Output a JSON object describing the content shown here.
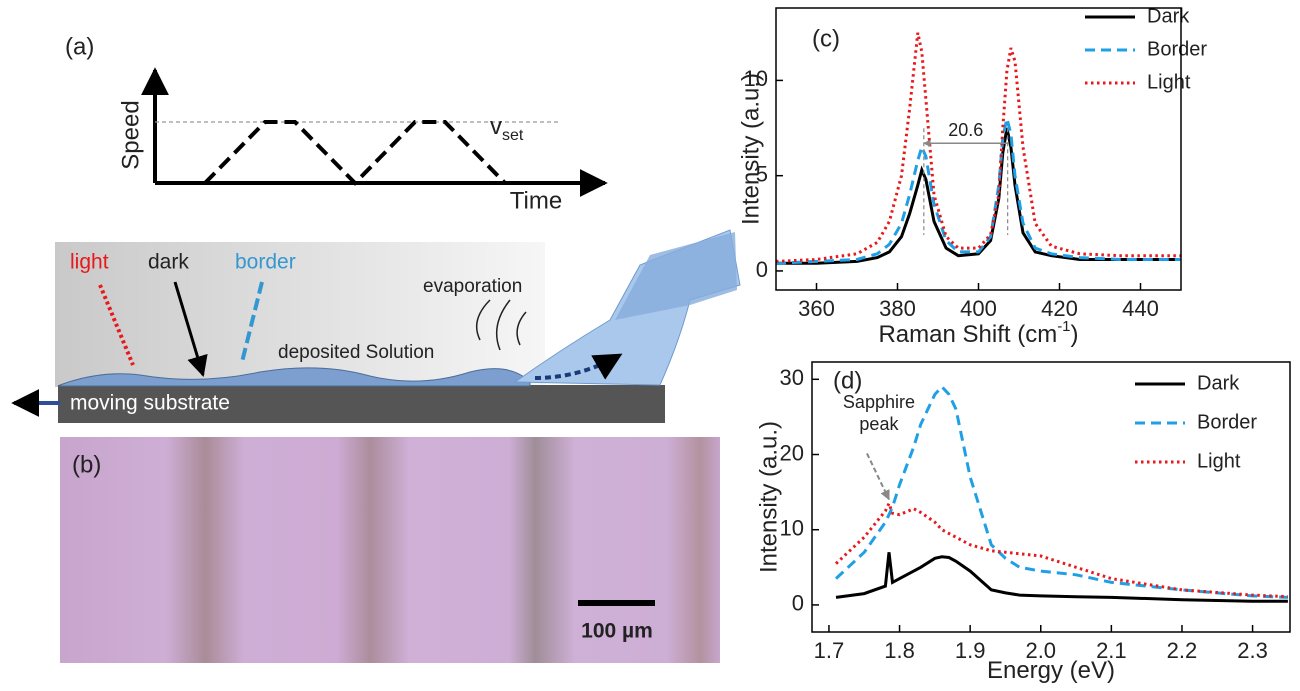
{
  "panel_a": {
    "label": "(a)",
    "y_label": "Speed",
    "x_label": "Time",
    "v": "v",
    "v_sub": "set"
  },
  "schematic": {
    "light": "light",
    "dark": "dark",
    "border": "border",
    "evaporation": "evaporation",
    "deposited": "deposited Solution",
    "substrate": "moving substrate"
  },
  "panel_b": {
    "label": "(b)",
    "scale_bar": "100 µm"
  },
  "chart_data": [
    {
      "type": "line",
      "panel_label": "(c)",
      "x_label": "Raman Shift (cm",
      "x_label_sup": "-1",
      "x_label_end": ")",
      "y_label": "Intensity (a.u.)",
      "x": [
        350,
        360,
        370,
        375,
        378,
        381,
        383,
        385,
        386,
        387,
        389,
        392,
        395,
        400,
        403,
        405,
        406,
        407,
        408,
        409,
        411,
        414,
        418,
        425,
        435,
        450
      ],
      "series": [
        {
          "name": "Dark",
          "color": "#000000",
          "style": "solid",
          "values": [
            0.4,
            0.4,
            0.5,
            0.7,
            1.0,
            1.8,
            3.0,
            4.5,
            5.3,
            4.8,
            2.6,
            1.2,
            0.8,
            0.9,
            1.6,
            3.8,
            6.2,
            7.5,
            6.5,
            4.5,
            2.0,
            1.0,
            0.8,
            0.6,
            0.6,
            0.6
          ]
        },
        {
          "name": "Border",
          "color": "#1fa0e6",
          "style": "dashed",
          "values": [
            0.4,
            0.5,
            0.6,
            0.9,
            1.4,
            2.5,
            4.0,
            5.8,
            6.5,
            6.0,
            3.5,
            1.6,
            1.0,
            1.0,
            1.8,
            4.5,
            7.0,
            8.0,
            7.2,
            5.0,
            2.5,
            1.2,
            0.9,
            0.7,
            0.6,
            0.6
          ]
        },
        {
          "name": "Light",
          "color": "#e8191c",
          "style": "dotted",
          "values": [
            0.5,
            0.6,
            0.9,
            1.5,
            2.6,
            5.0,
            8.5,
            12.5,
            11.5,
            9.0,
            4.0,
            1.8,
            1.2,
            1.2,
            1.9,
            4.0,
            7.5,
            10.5,
            11.7,
            11.0,
            6.5,
            2.5,
            1.3,
            0.9,
            0.8,
            0.8
          ]
        }
      ],
      "xlim": [
        350,
        450
      ],
      "xticks": [
        360,
        380,
        400,
        420,
        440
      ],
      "ylim": [
        -1,
        13.8
      ],
      "yticks": [
        0,
        5,
        10
      ],
      "legend": "upper right",
      "annotation": {
        "text": "20.6",
        "x_from": 386.5,
        "x_to": 407.2,
        "y": 6.7
      }
    },
    {
      "type": "line",
      "panel_label": "(d)",
      "x_label": "Energy (eV)",
      "y_label": "Intensity (a.u.)",
      "x": [
        1.71,
        1.75,
        1.78,
        1.785,
        1.79,
        1.8,
        1.82,
        1.83,
        1.85,
        1.86,
        1.87,
        1.88,
        1.9,
        1.93,
        1.95,
        1.97,
        2.0,
        2.05,
        2.1,
        2.2,
        2.3,
        2.35
      ],
      "series": [
        {
          "name": "Dark",
          "color": "#000000",
          "style": "solid",
          "values": [
            1.0,
            1.5,
            2.5,
            7.0,
            3.0,
            3.5,
            4.5,
            5.0,
            6.2,
            6.4,
            6.3,
            5.8,
            4.5,
            2.0,
            1.6,
            1.3,
            1.2,
            1.1,
            1.0,
            0.7,
            0.5,
            0.5
          ]
        },
        {
          "name": "Border",
          "color": "#1fa0e6",
          "style": "dashed",
          "values": [
            3.5,
            7.0,
            11.0,
            12.0,
            13.0,
            16.0,
            21.0,
            24.0,
            28.0,
            29.0,
            28.0,
            26.0,
            17.0,
            8.0,
            6.2,
            5.0,
            4.5,
            4.0,
            3.0,
            2.0,
            1.2,
            1.0
          ]
        },
        {
          "name": "Light",
          "color": "#e8191c",
          "style": "dotted",
          "values": [
            5.5,
            9.0,
            12.5,
            13.5,
            12.2,
            12.0,
            12.8,
            12.3,
            11.0,
            10.0,
            9.5,
            9.0,
            8.0,
            7.2,
            7.0,
            6.8,
            6.5,
            5.0,
            3.5,
            2.0,
            1.3,
            1.1
          ]
        }
      ],
      "xlim": [
        1.676,
        2.353
      ],
      "xticks": [
        1.7,
        1.8,
        1.9,
        {
          "value": 2.0,
          "label": "2.0"
        },
        2.1,
        2.2,
        2.3
      ],
      "ylim": [
        -3.6,
        32.3
      ],
      "yticks": [
        0,
        10,
        20,
        30
      ],
      "legend": "upper right",
      "annotation": {
        "text": [
          "Sapphire",
          "peak"
        ],
        "x": 1.785,
        "y": 13.5
      }
    }
  ]
}
